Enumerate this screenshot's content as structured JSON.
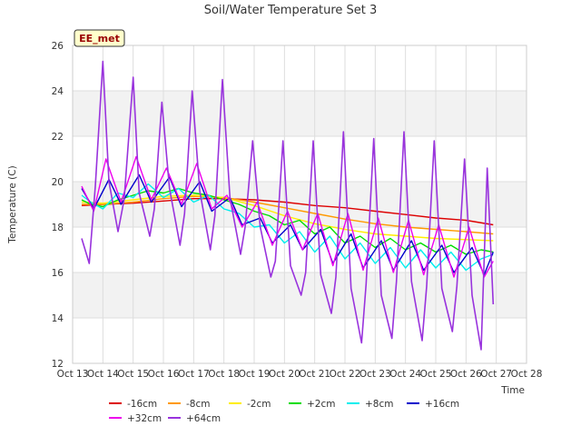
{
  "chart_data": {
    "type": "line",
    "title": "Soil/Water Temperature Set 3",
    "xlabel": "Time",
    "ylabel": "Temperature (C)",
    "station_label": "EE_met",
    "xlim": [
      13,
      28
    ],
    "ylim": [
      12,
      26
    ],
    "x_ticks": [
      13,
      14,
      15,
      16,
      17,
      18,
      19,
      20,
      21,
      22,
      23,
      24,
      25,
      26,
      27,
      28
    ],
    "x_tick_labels": [
      "Oct 13",
      "Oct 14",
      "Oct 15",
      "Oct 16",
      "Oct 17",
      "Oct 18",
      "Oct 19",
      "Oct 20",
      "Oct 21",
      "Oct 22",
      "Oct 23",
      "Oct 24",
      "Oct 25",
      "Oct 26",
      "Oct 27",
      "Oct 28"
    ],
    "y_ticks": [
      12,
      14,
      16,
      18,
      20,
      22,
      24,
      26
    ],
    "y_tick_labels": [
      "12",
      "14",
      "16",
      "18",
      "20",
      "22",
      "24",
      "26"
    ],
    "grid": true,
    "legend_position": "bottom",
    "series": [
      {
        "name": "-16cm",
        "color": "#dd0000",
        "x": [
          13.3,
          14,
          15,
          16,
          17,
          18,
          19,
          20,
          21,
          22,
          23,
          24,
          25,
          26,
          26.9
        ],
        "y": [
          18.95,
          19.0,
          19.05,
          19.15,
          19.25,
          19.25,
          19.2,
          19.1,
          18.95,
          18.85,
          18.7,
          18.55,
          18.4,
          18.3,
          18.1
        ]
      },
      {
        "name": "-8cm",
        "color": "#ff9900",
        "x": [
          13.3,
          14,
          15,
          16,
          17,
          18,
          19,
          20,
          21,
          22,
          23,
          24,
          25,
          26,
          26.9
        ],
        "y": [
          19.0,
          19.0,
          19.1,
          19.25,
          19.35,
          19.3,
          19.1,
          18.85,
          18.6,
          18.35,
          18.15,
          18.0,
          17.9,
          17.8,
          17.7
        ]
      },
      {
        "name": "-2cm",
        "color": "#ffee00",
        "x": [
          13.3,
          14,
          15,
          16,
          17,
          18,
          19,
          20,
          21,
          22,
          23,
          24,
          25,
          26,
          26.9
        ],
        "y": [
          19.1,
          19.05,
          19.2,
          19.35,
          19.4,
          19.3,
          18.95,
          18.5,
          18.15,
          17.9,
          17.7,
          17.6,
          17.5,
          17.45,
          17.4
        ]
      },
      {
        "name": "+2cm",
        "color": "#00dd00",
        "x": [
          13.3,
          13.6,
          14,
          14.5,
          15,
          15.5,
          16,
          16.5,
          17,
          17.5,
          18,
          18.5,
          19,
          19.5,
          20,
          20.5,
          21,
          21.5,
          22,
          22.5,
          23,
          23.5,
          24,
          24.5,
          25,
          25.5,
          26,
          26.5,
          26.9
        ],
        "y": [
          19.2,
          19.0,
          18.9,
          19.2,
          19.4,
          19.6,
          19.5,
          19.7,
          19.5,
          19.4,
          19.2,
          19.0,
          18.7,
          18.5,
          18.1,
          18.3,
          17.7,
          18.0,
          17.3,
          17.6,
          17.1,
          17.5,
          17.0,
          17.3,
          16.9,
          17.2,
          16.8,
          17.0,
          16.9
        ]
      },
      {
        "name": "+8cm",
        "color": "#00eeee",
        "x": [
          13.3,
          13.6,
          14,
          14.5,
          15,
          15.5,
          16,
          16.5,
          17,
          17.5,
          18,
          18.5,
          19,
          19.5,
          20,
          20.5,
          21,
          21.5,
          22,
          22.5,
          23,
          23.5,
          24,
          24.5,
          25,
          25.5,
          26,
          26.5,
          26.9
        ],
        "y": [
          19.4,
          19.1,
          18.8,
          19.5,
          19.3,
          19.9,
          19.3,
          19.7,
          19.1,
          19.4,
          18.8,
          18.6,
          18.0,
          18.1,
          17.3,
          17.8,
          16.9,
          17.6,
          16.6,
          17.3,
          16.4,
          17.1,
          16.2,
          17.0,
          16.2,
          16.9,
          16.1,
          16.6,
          16.8
        ]
      },
      {
        "name": "+16cm",
        "color": "#0000cc",
        "x": [
          13.3,
          13.7,
          14.2,
          14.6,
          15.2,
          15.6,
          16.2,
          16.6,
          17.2,
          17.6,
          18.2,
          18.6,
          19.2,
          19.6,
          20.2,
          20.6,
          21.2,
          21.6,
          22.2,
          22.6,
          23.2,
          23.6,
          24.2,
          24.6,
          25.2,
          25.6,
          26.2,
          26.6,
          26.9
        ],
        "y": [
          19.7,
          18.8,
          20.1,
          19.0,
          20.3,
          19.1,
          20.2,
          18.9,
          20.0,
          18.7,
          19.3,
          18.1,
          18.4,
          17.3,
          18.1,
          17.0,
          17.9,
          16.4,
          17.7,
          16.2,
          17.4,
          16.1,
          17.4,
          16.1,
          17.2,
          16.0,
          17.1,
          15.9,
          16.9
        ]
      },
      {
        "name": "+32cm",
        "color": "#ee00ee",
        "x": [
          13.3,
          13.7,
          14.1,
          14.6,
          15.1,
          15.6,
          16.1,
          16.6,
          17.1,
          17.6,
          18.1,
          18.6,
          19.1,
          19.6,
          20.1,
          20.6,
          21.1,
          21.6,
          22.1,
          22.6,
          23.1,
          23.6,
          24.1,
          24.6,
          25.1,
          25.6,
          26.1,
          26.6,
          26.9
        ],
        "y": [
          19.8,
          18.7,
          21.0,
          19.1,
          21.1,
          19.2,
          20.6,
          19.0,
          20.8,
          18.8,
          19.4,
          18.0,
          19.1,
          17.2,
          18.7,
          17.0,
          18.6,
          16.3,
          18.6,
          16.1,
          18.4,
          16.0,
          18.3,
          15.9,
          18.1,
          15.8,
          18.0,
          15.8,
          16.5
        ]
      },
      {
        "name": "+64cm",
        "color": "#9933dd",
        "x": [
          13.3,
          13.55,
          13.75,
          14.0,
          14.2,
          14.5,
          14.7,
          15.0,
          15.2,
          15.55,
          15.7,
          15.95,
          16.2,
          16.55,
          16.7,
          16.95,
          17.2,
          17.55,
          17.7,
          17.95,
          18.2,
          18.55,
          18.7,
          18.95,
          19.2,
          19.55,
          19.7,
          19.95,
          20.2,
          20.55,
          20.7,
          20.95,
          21.2,
          21.55,
          21.7,
          21.95,
          22.2,
          22.55,
          22.7,
          22.95,
          23.2,
          23.55,
          23.7,
          23.95,
          24.2,
          24.55,
          24.7,
          24.95,
          25.2,
          25.55,
          25.7,
          25.95,
          26.2,
          26.5,
          26.7,
          26.9
        ],
        "y": [
          17.5,
          16.4,
          19.8,
          25.3,
          20.0,
          17.8,
          19.2,
          24.6,
          19.5,
          17.6,
          18.8,
          23.5,
          19.7,
          17.2,
          18.6,
          24.0,
          19.6,
          17.0,
          18.5,
          24.5,
          19.3,
          16.8,
          18.0,
          21.8,
          18.0,
          15.8,
          16.5,
          21.8,
          16.3,
          15.0,
          16.0,
          21.8,
          15.9,
          14.2,
          15.8,
          22.2,
          15.3,
          12.9,
          15.5,
          21.9,
          15.0,
          13.1,
          15.6,
          22.2,
          15.6,
          13.0,
          15.4,
          21.8,
          15.3,
          13.4,
          15.4,
          21.0,
          15.0,
          12.6,
          20.6,
          14.6
        ]
      }
    ]
  }
}
